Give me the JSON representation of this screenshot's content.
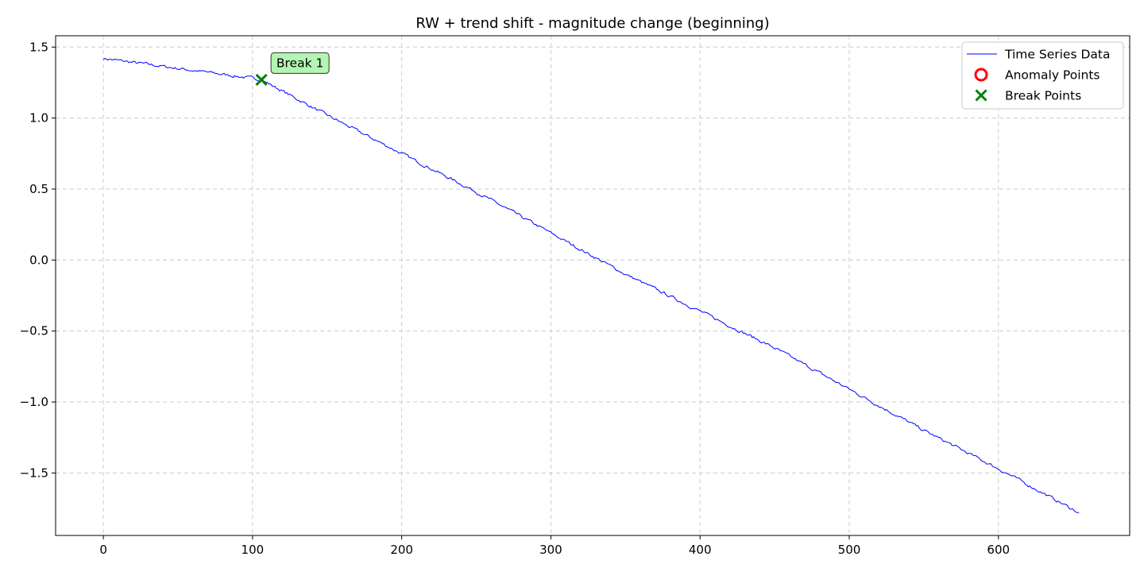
{
  "chart_data": {
    "type": "line",
    "title": "RW + trend shift - magnitude change (beginning)",
    "xlabel": "",
    "ylabel": "",
    "xlim": [
      -32,
      688
    ],
    "ylim": [
      -1.94,
      1.58
    ],
    "x_ticks": [
      0,
      100,
      200,
      300,
      400,
      500,
      600
    ],
    "x_tick_labels": [
      "0",
      "100",
      "200",
      "300",
      "400",
      "500",
      "600"
    ],
    "y_ticks": [
      1.5,
      1.0,
      0.5,
      0.0,
      -0.5,
      -1.0,
      -1.5
    ],
    "y_tick_labels": [
      "1.5",
      "1.0",
      "0.5",
      "0.0",
      "−0.5",
      "−1.0",
      "−1.5"
    ],
    "grid": true,
    "legend_position": "top-right",
    "series": [
      {
        "name": "Time Series Data",
        "kind": "line",
        "color": "#0000ff",
        "n_points": 655,
        "anchor_x": [
          0,
          50,
          100,
          106,
          150,
          200,
          250,
          300,
          350,
          400,
          450,
          500,
          550,
          600,
          654
        ],
        "anchor_y": [
          1.42,
          1.35,
          1.28,
          1.27,
          1.02,
          0.75,
          0.48,
          0.19,
          -0.1,
          -0.36,
          -0.62,
          -0.91,
          -1.2,
          -1.47,
          -1.78
        ]
      },
      {
        "name": "Anomaly Points",
        "kind": "scatter",
        "marker": "circle-open",
        "color": "#ff0000",
        "points": []
      },
      {
        "name": "Break Points",
        "kind": "scatter",
        "marker": "x",
        "color": "#008000",
        "points": [
          {
            "x": 106,
            "y": 1.27
          }
        ]
      }
    ],
    "annotations": [
      {
        "text": "Break 1",
        "x": 106,
        "y": 1.27,
        "box_color": "#b3f5b3"
      }
    ]
  }
}
